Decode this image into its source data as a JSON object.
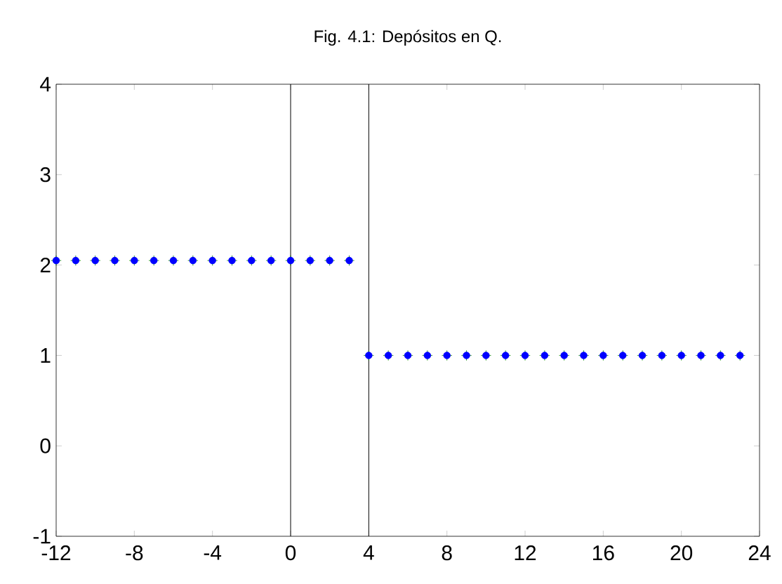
{
  "chart_data": {
    "type": "scatter",
    "title": "Fig. 4.1: Depósitos en Q.",
    "x": [
      -12,
      -11,
      -10,
      -9,
      -8,
      -7,
      -6,
      -5,
      -4,
      -3,
      -2,
      -1,
      0,
      1,
      2,
      3,
      4,
      5,
      6,
      7,
      8,
      9,
      10,
      11,
      12,
      13,
      14,
      15,
      16,
      17,
      18,
      19,
      20,
      21,
      22,
      23
    ],
    "series": [
      {
        "color": "#008000",
        "marker": "cross",
        "values": [
          2.05,
          2.05,
          2.05,
          2.05,
          2.05,
          2.05,
          2.05,
          2.05,
          2.05,
          2.05,
          2.05,
          2.05,
          2.05,
          2.05,
          2.05,
          2.05,
          1,
          1,
          1,
          1,
          1,
          1,
          1,
          1,
          1,
          1,
          1,
          1,
          1,
          1,
          1,
          1,
          1,
          1,
          1,
          1
        ]
      },
      {
        "color": "#0000ff",
        "marker": "circle",
        "values": [
          2.05,
          2.05,
          2.05,
          2.05,
          2.05,
          2.05,
          2.05,
          2.05,
          2.05,
          2.05,
          2.05,
          2.05,
          2.05,
          2.05,
          2.05,
          2.05,
          1,
          1,
          1,
          1,
          1,
          1,
          1,
          1,
          1,
          1,
          1,
          1,
          1,
          1,
          1,
          1,
          1,
          1,
          1,
          1
        ]
      }
    ],
    "xlim": [
      -12,
      24
    ],
    "xticks": [
      -12,
      -8,
      -4,
      0,
      4,
      8,
      12,
      16,
      20,
      24
    ],
    "ylim": [
      -1,
      4
    ],
    "yticks": [
      -1,
      0,
      1,
      2,
      3,
      4
    ],
    "ref_lines": [
      {
        "axis": "x",
        "value": 0,
        "color": "#000000"
      },
      {
        "axis": "x",
        "value": 4,
        "color": "#000000"
      }
    ],
    "grid": false
  }
}
